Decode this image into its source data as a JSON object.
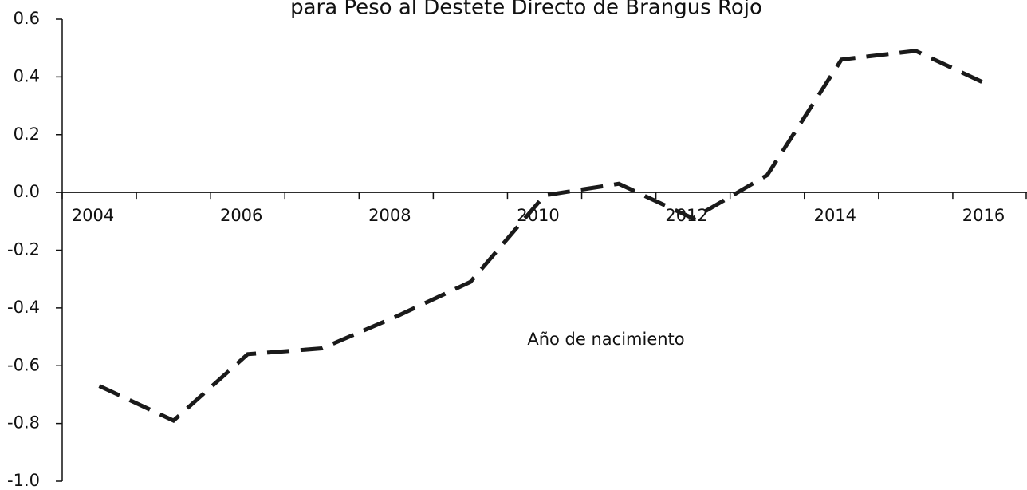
{
  "chart_data": {
    "type": "line",
    "title": "para Peso al Destete Directo de Brangus Rojo",
    "annotation": "Año de nacimiento",
    "categories": [
      "2004",
      null,
      "2006",
      null,
      "2008",
      null,
      "2010",
      null,
      "2012",
      null,
      "2014",
      null,
      "2016"
    ],
    "series": [
      {
        "name": null,
        "color": "#1a1a1a",
        "values": [
          -0.67,
          -0.79,
          -0.56,
          -0.54,
          -0.43,
          -0.31,
          -0.01,
          0.03,
          -0.09,
          0.06,
          0.46,
          0.49,
          0.37
        ]
      }
    ],
    "ylim": [
      -1.0,
      0.6
    ],
    "yticks": [
      {
        "value": -1.0,
        "label": "-1.0"
      },
      -0.8,
      -0.6,
      -0.4,
      -0.2,
      {
        "value": 0,
        "label": "0.0"
      },
      0.2,
      0.4,
      0.6
    ],
    "grid": false
  }
}
